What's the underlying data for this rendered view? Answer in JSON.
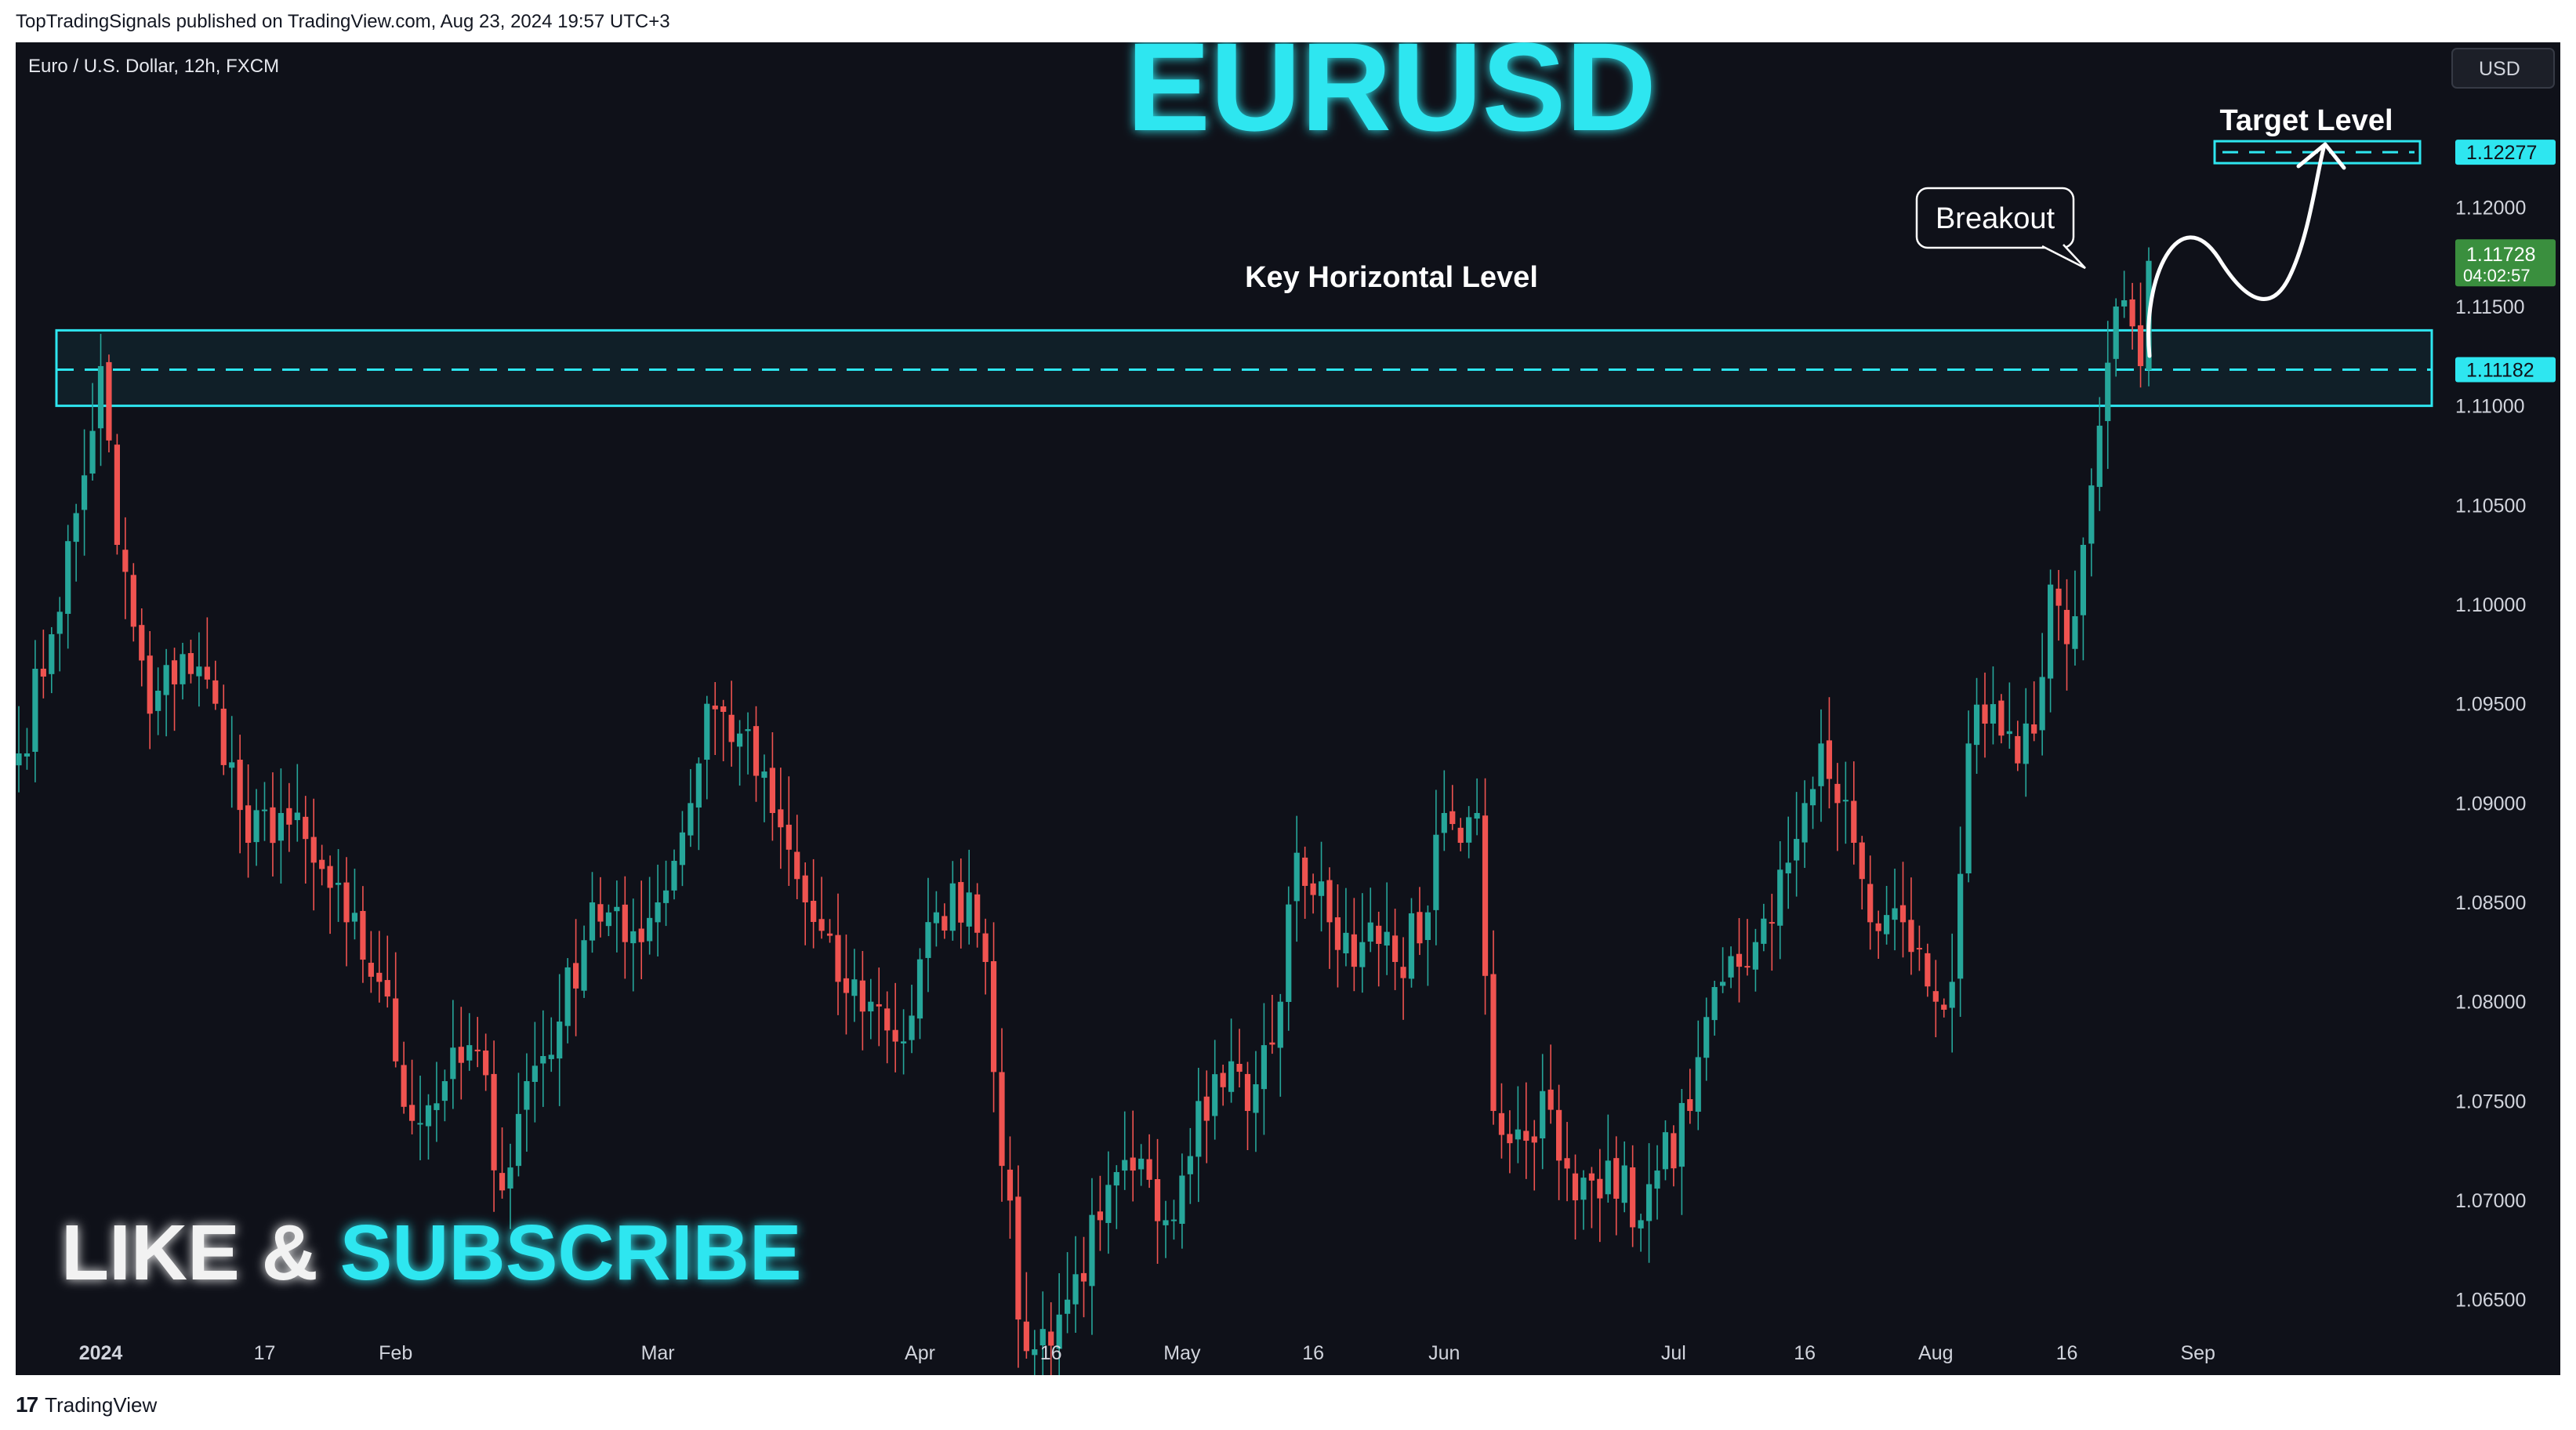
{
  "header": {
    "publisher_line": "TopTradingSignals published on TradingView.com, Aug 23, 2024 19:57 UTC+3"
  },
  "footer": {
    "logo_mark": "17",
    "brand": "TradingView"
  },
  "chart_data": {
    "type": "candlestick",
    "symbol_line": "Euro / U.S. Dollar, 12h, FXCM",
    "title": "EURUSD",
    "currency_badge": "USD",
    "ylim": [
      1.0612,
      1.1283
    ],
    "y_ticks": [
      "1.12000",
      "1.11500",
      "1.11000",
      "1.10500",
      "1.10000",
      "1.09500",
      "1.09000",
      "1.08500",
      "1.08000",
      "1.07500",
      "1.07000",
      "1.06500"
    ],
    "x_ticks": [
      {
        "label": "2024",
        "bar": 10,
        "bold": true
      },
      {
        "label": "17",
        "bar": 30
      },
      {
        "label": "Feb",
        "bar": 46
      },
      {
        "label": "Mar",
        "bar": 78
      },
      {
        "label": "Apr",
        "bar": 110
      },
      {
        "label": "16",
        "bar": 126
      },
      {
        "label": "May",
        "bar": 142
      },
      {
        "label": "16",
        "bar": 158
      },
      {
        "label": "Jun",
        "bar": 174
      },
      {
        "label": "Jul",
        "bar": 202
      },
      {
        "label": "16",
        "bar": 218
      },
      {
        "label": "Aug",
        "bar": 234
      },
      {
        "label": "16",
        "bar": 250
      },
      {
        "label": "Sep",
        "bar": 266
      }
    ],
    "anchors": [
      [
        0,
        1.0925
      ],
      [
        4,
        1.0985
      ],
      [
        8,
        1.1065
      ],
      [
        10,
        1.112
      ],
      [
        12,
        1.103
      ],
      [
        16,
        1.0945
      ],
      [
        20,
        1.0975
      ],
      [
        24,
        1.095
      ],
      [
        28,
        1.088
      ],
      [
        32,
        1.0895
      ],
      [
        36,
        1.087
      ],
      [
        40,
        1.084
      ],
      [
        44,
        1.081
      ],
      [
        48,
        1.074
      ],
      [
        52,
        1.076
      ],
      [
        56,
        1.0775
      ],
      [
        59,
        1.0705
      ],
      [
        62,
        1.076
      ],
      [
        66,
        1.079
      ],
      [
        70,
        1.085
      ],
      [
        74,
        1.083
      ],
      [
        78,
        1.085
      ],
      [
        82,
        1.09
      ],
      [
        84,
        1.095
      ],
      [
        88,
        1.0935
      ],
      [
        92,
        1.0895
      ],
      [
        96,
        1.085
      ],
      [
        100,
        1.081
      ],
      [
        104,
        1.08
      ],
      [
        108,
        1.078
      ],
      [
        112,
        1.0845
      ],
      [
        116,
        1.0855
      ],
      [
        118,
        1.082
      ],
      [
        122,
        1.064
      ],
      [
        124,
        1.0625
      ],
      [
        128,
        1.065
      ],
      [
        132,
        1.069
      ],
      [
        136,
        1.0715
      ],
      [
        140,
        1.069
      ],
      [
        144,
        1.075
      ],
      [
        148,
        1.077
      ],
      [
        150,
        1.0745
      ],
      [
        154,
        1.08
      ],
      [
        156,
        1.0875
      ],
      [
        160,
        1.084
      ],
      [
        164,
        1.083
      ],
      [
        168,
        1.082
      ],
      [
        172,
        1.0845
      ],
      [
        174,
        1.0895
      ],
      [
        176,
        1.088
      ],
      [
        178,
        1.0895
      ],
      [
        180,
        1.0745
      ],
      [
        184,
        1.073
      ],
      [
        186,
        1.0755
      ],
      [
        188,
        1.072
      ],
      [
        190,
        1.07
      ],
      [
        194,
        1.072
      ],
      [
        198,
        1.069
      ],
      [
        200,
        1.0715
      ],
      [
        204,
        1.0745
      ],
      [
        208,
        1.081
      ],
      [
        212,
        1.083
      ],
      [
        214,
        1.084
      ],
      [
        216,
        1.087
      ],
      [
        218,
        1.09
      ],
      [
        220,
        1.093
      ],
      [
        222,
        1.09
      ],
      [
        224,
        1.088
      ],
      [
        226,
        1.084
      ],
      [
        230,
        1.084
      ],
      [
        234,
        1.08
      ],
      [
        236,
        1.081
      ],
      [
        238,
        1.093
      ],
      [
        240,
        1.094
      ],
      [
        244,
        1.092
      ],
      [
        246,
        1.0935
      ],
      [
        248,
        1.101
      ],
      [
        250,
        1.098
      ],
      [
        252,
        1.103
      ],
      [
        254,
        1.109
      ],
      [
        256,
        1.115
      ],
      [
        258,
        1.114
      ],
      [
        259,
        1.112
      ],
      [
        260,
        1.1173
      ]
    ],
    "key_level": {
      "label": "Key Horizontal Level",
      "value": 1.11182,
      "zone": [
        1.11,
        1.1138
      ]
    },
    "target": {
      "label": "Target Level",
      "value": 1.12277
    },
    "breakout_label": "Breakout",
    "price_tags": {
      "target": "1.12277",
      "last": "1.11728",
      "countdown": "04:02:57",
      "key": "1.11182"
    },
    "watermark": {
      "like": "LIKE &",
      "subscribe": "SUBSCRIBE"
    },
    "colors": {
      "background": "#0f1119",
      "up": "#26a69a",
      "down": "#ef5350",
      "accent": "#2ee6f0",
      "last_price_tag": "#3a8f3e",
      "axis_text": "#d1d4dc"
    }
  }
}
